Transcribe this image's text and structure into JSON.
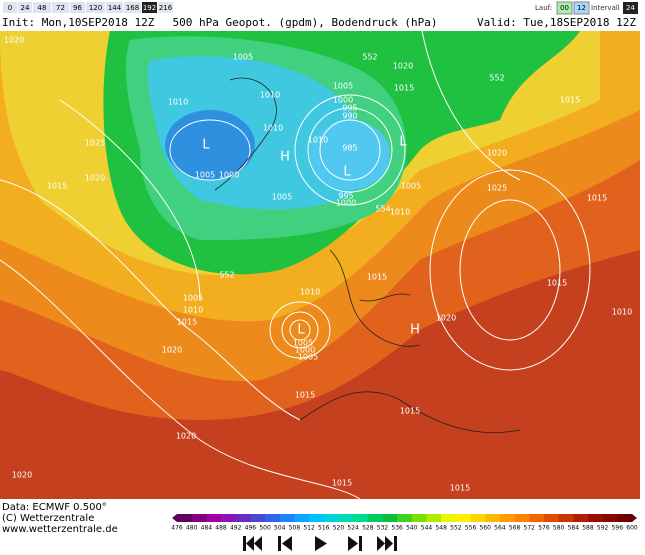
{
  "top_bar": {
    "steps": [
      "0",
      "24",
      "48",
      "72",
      "96",
      "120",
      "144",
      "168",
      "192",
      "216"
    ],
    "active_step": "192",
    "run_label": "Lauf:",
    "runs": [
      "00",
      "12"
    ],
    "interval_label": "Intervall",
    "interval": "24"
  },
  "header": {
    "init": "Init: Mon,10SEP2018 12Z",
    "title": "500 hPa Geopot. (gpdm), Bodendruck (hPa)",
    "valid": "Valid: Tue,18SEP2018 12Z"
  },
  "map": {
    "labels": [
      "1020",
      "1005",
      "552",
      "1020",
      "1010",
      "1010",
      "1005",
      "1015",
      "552",
      "1015",
      "1000",
      "995",
      "990",
      "1010",
      "1010",
      "1025",
      "985",
      "1020",
      "1005",
      "1000",
      "1020",
      "1005",
      "995",
      "1000",
      "1005",
      "1025",
      "1015",
      "1015",
      "554",
      "1010",
      "1015",
      "552",
      "1005",
      "1010",
      "1015",
      "1010",
      "1020",
      "1005",
      "1000",
      "1005",
      "1020",
      "1015",
      "1015",
      "1020",
      "1020",
      "1015",
      "1015",
      "1010",
      "1015"
    ],
    "centers": [
      "L",
      "L",
      "H",
      "L",
      "H",
      "L"
    ]
  },
  "color_scale": {
    "labels": [
      "476",
      "480",
      "484",
      "488",
      "492",
      "496",
      "500",
      "504",
      "508",
      "512",
      "516",
      "520",
      "524",
      "528",
      "532",
      "536",
      "540",
      "544",
      "548",
      "552",
      "556",
      "560",
      "564",
      "568",
      "572",
      "576",
      "580",
      "584",
      "588",
      "592",
      "596",
      "600"
    ]
  },
  "footer": {
    "data": "Data: ECMWF  0.500°",
    "copyright": "(C) Wetterzentrale",
    "url": "www.wetterzentrale.de"
  }
}
